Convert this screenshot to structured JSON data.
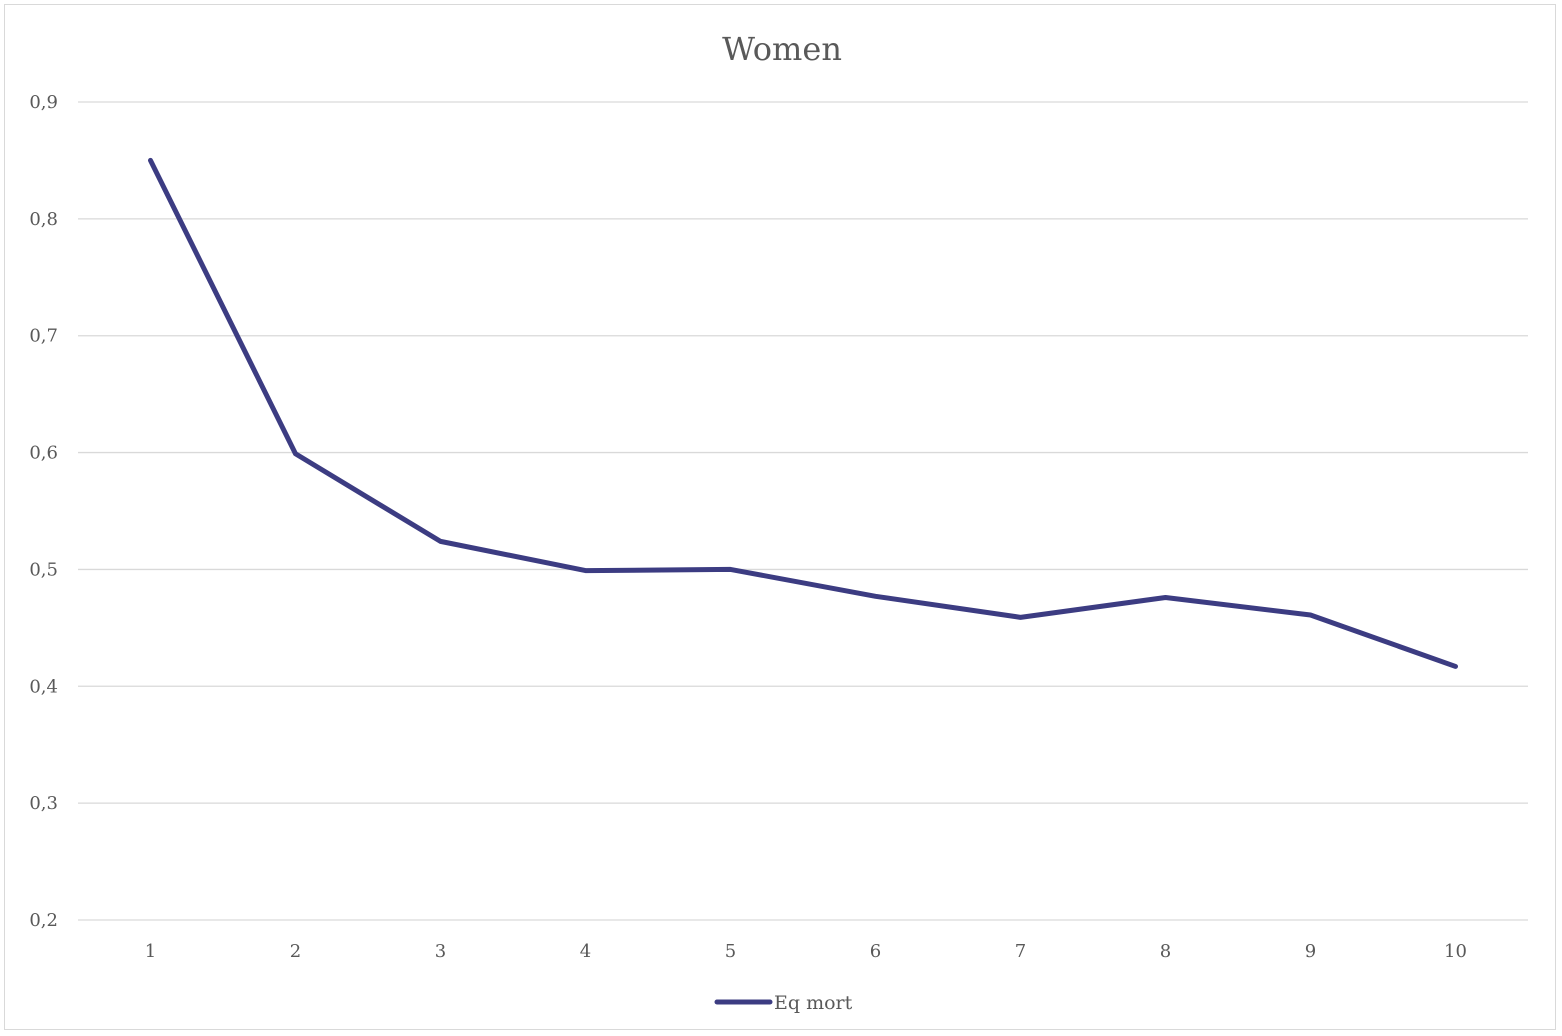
{
  "chart_data": {
    "type": "line",
    "title": "Women",
    "xlabel": "",
    "ylabel": "",
    "categories": [
      "1",
      "2",
      "3",
      "4",
      "5",
      "6",
      "7",
      "8",
      "9",
      "10"
    ],
    "series": [
      {
        "name": "Eq mort",
        "color": "#3c3c82",
        "values": [
          0.85,
          0.599,
          0.524,
          0.499,
          0.5,
          0.477,
          0.459,
          0.476,
          0.461,
          0.417
        ]
      }
    ],
    "ylim": [
      0.2,
      0.9
    ],
    "yticks": [
      0.2,
      0.3,
      0.4,
      0.5,
      0.6,
      0.7,
      0.8,
      0.9
    ],
    "ytick_labels": [
      "0,2",
      "0,3",
      "0,4",
      "0,5",
      "0,6",
      "0,7",
      "0,8",
      "0,9"
    ],
    "grid": true,
    "legend": "bottom-center"
  }
}
